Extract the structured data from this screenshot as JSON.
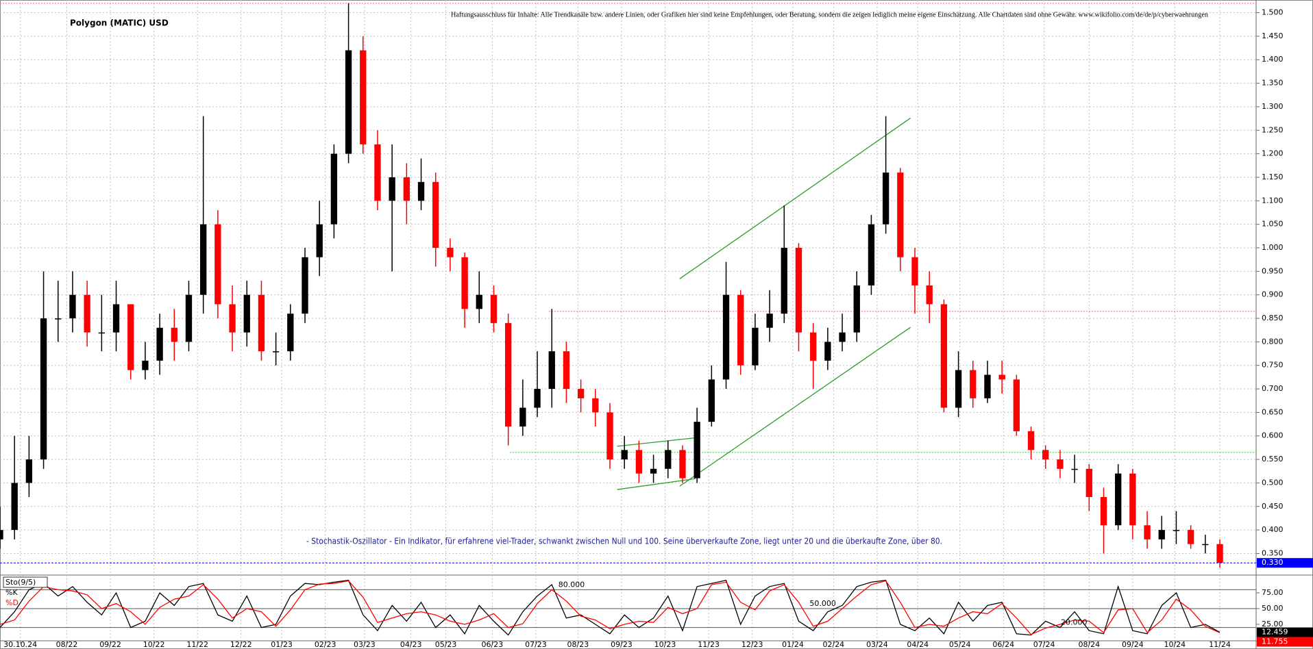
{
  "chart_data": {
    "type": "candlestick",
    "title": "Polygon (MATIC) USD",
    "disclaimer": "Haftungsausschluss für Inhalte: Alle Trendkanäle bzw. andere Linien, oder Grafiken hier sind keine Empfehlungen, oder Beratung, sondern die zeigen lediglich meine eigene Einschätzung. Alle Chartdaten sind ohne Gewähr. www.wikifolio.com/de/de/p/cyberwaehrungen",
    "annotation": "- Stochastik-Oszillator - Ein Indikator, für erfahrene viel-Trader, schwankt zwischen Null und 100. Seine überverkaufte Zone, liegt unter 20 und die überkaufte Zone, über 80.",
    "up_color": "#000000",
    "down_color": "#ff0000",
    "grid": true,
    "xlim": [
      0,
      86.5
    ],
    "xticks": [
      {
        "value": 1.4,
        "label": "30.10.24"
      },
      {
        "value": 4.6,
        "label": "08/22"
      },
      {
        "value": 7.6,
        "label": "09/22"
      },
      {
        "value": 10.6,
        "label": "10/22"
      },
      {
        "value": 13.6,
        "label": "11/22"
      },
      {
        "value": 16.6,
        "label": "12/22"
      },
      {
        "value": 19.4,
        "label": "01/23"
      },
      {
        "value": 22.4,
        "label": "02/23"
      },
      {
        "value": 25.1,
        "label": "03/23"
      },
      {
        "value": 28.3,
        "label": "04/23"
      },
      {
        "value": 30.7,
        "label": "05/23"
      },
      {
        "value": 33.9,
        "label": "06/23"
      },
      {
        "value": 36.9,
        "label": "07/23"
      },
      {
        "value": 39.8,
        "label": "08/23"
      },
      {
        "value": 42.8,
        "label": "09/23"
      },
      {
        "value": 45.8,
        "label": "10/23"
      },
      {
        "value": 48.8,
        "label": "11/23"
      },
      {
        "value": 51.8,
        "label": "12/23"
      },
      {
        "value": 54.6,
        "label": "01/24"
      },
      {
        "value": 57.4,
        "label": "02/24"
      },
      {
        "value": 60.4,
        "label": "03/24"
      },
      {
        "value": 63.2,
        "label": "04/24"
      },
      {
        "value": 66.1,
        "label": "05/24"
      },
      {
        "value": 69.1,
        "label": "06/24"
      },
      {
        "value": 71.9,
        "label": "07/24"
      },
      {
        "value": 75.0,
        "label": "08/24"
      },
      {
        "value": 78.0,
        "label": "09/24"
      },
      {
        "value": 80.9,
        "label": "10/24"
      },
      {
        "value": 84.0,
        "label": "11/24"
      }
    ],
    "ylim": [
      0.307,
      1.527
    ],
    "yticks": [
      {
        "value": 0.35,
        "label": "0.350"
      },
      {
        "value": 0.4,
        "label": "0.400"
      },
      {
        "value": 0.45,
        "label": "0.450"
      },
      {
        "value": 0.5,
        "label": "0.500"
      },
      {
        "value": 0.55,
        "label": "0.550"
      },
      {
        "value": 0.6,
        "label": "0.600"
      },
      {
        "value": 0.65,
        "label": "0.650"
      },
      {
        "value": 0.7,
        "label": "0.700"
      },
      {
        "value": 0.75,
        "label": "0.750"
      },
      {
        "value": 0.8,
        "label": "0.800"
      },
      {
        "value": 0.85,
        "label": "0.850"
      },
      {
        "value": 0.9,
        "label": "0.900"
      },
      {
        "value": 0.95,
        "label": "0.950"
      },
      {
        "value": 1.0,
        "label": "1.000"
      },
      {
        "value": 1.05,
        "label": "1.050"
      },
      {
        "value": 1.1,
        "label": "1.100"
      },
      {
        "value": 1.15,
        "label": "1.150"
      },
      {
        "value": 1.2,
        "label": "1.200"
      },
      {
        "value": 1.25,
        "label": "1.250"
      },
      {
        "value": 1.3,
        "label": "1.300"
      },
      {
        "value": 1.35,
        "label": "1.350"
      },
      {
        "value": 1.4,
        "label": "1.400"
      },
      {
        "value": 1.45,
        "label": "1.450"
      },
      {
        "value": 1.5,
        "label": "1.500"
      }
    ],
    "open": [
      0.38,
      0.4,
      0.5,
      0.55,
      0.85,
      0.85,
      0.9,
      0.82,
      0.82,
      0.88,
      0.74,
      0.76,
      0.83,
      0.8,
      0.9,
      1.05,
      0.88,
      0.82,
      0.9,
      0.78,
      0.78,
      0.86,
      0.98,
      1.05,
      1.2,
      1.42,
      1.22,
      1.1,
      1.15,
      1.1,
      1.14,
      1.0,
      0.98,
      0.87,
      0.9,
      0.84,
      0.62,
      0.66,
      0.7,
      0.78,
      0.7,
      0.68,
      0.65,
      0.55,
      0.57,
      0.52,
      0.53,
      0.57,
      0.51,
      0.63,
      0.72,
      0.9,
      0.75,
      0.83,
      0.86,
      1.0,
      0.82,
      0.76,
      0.8,
      0.82,
      0.92,
      1.05,
      1.16,
      0.98,
      0.92,
      0.88,
      0.66,
      0.74,
      0.68,
      0.73,
      0.72,
      0.61,
      0.57,
      0.55,
      0.53,
      0.53,
      0.47,
      0.41,
      0.52,
      0.41,
      0.38,
      0.4,
      0.4,
      0.37,
      0.37
    ],
    "high": [
      0.45,
      0.6,
      0.6,
      0.95,
      0.93,
      0.95,
      0.93,
      0.9,
      0.93,
      0.88,
      0.8,
      0.86,
      0.87,
      0.93,
      1.28,
      1.08,
      0.92,
      0.93,
      0.93,
      0.82,
      0.88,
      1.0,
      1.1,
      1.22,
      1.52,
      1.45,
      1.25,
      1.22,
      1.18,
      1.19,
      1.16,
      1.02,
      0.99,
      0.95,
      0.92,
      0.86,
      0.72,
      0.78,
      0.87,
      0.8,
      0.72,
      0.7,
      0.67,
      0.6,
      0.59,
      0.56,
      0.59,
      0.58,
      0.66,
      0.75,
      0.97,
      0.91,
      0.86,
      0.91,
      1.09,
      1.01,
      0.84,
      0.83,
      0.86,
      0.95,
      1.07,
      1.28,
      1.17,
      1.0,
      0.95,
      0.89,
      0.78,
      0.76,
      0.76,
      0.76,
      0.73,
      0.62,
      0.58,
      0.57,
      0.56,
      0.54,
      0.49,
      0.54,
      0.53,
      0.44,
      0.43,
      0.44,
      0.41,
      0.39,
      0.38
    ],
    "low": [
      0.36,
      0.38,
      0.47,
      0.53,
      0.8,
      0.82,
      0.79,
      0.78,
      0.78,
      0.72,
      0.72,
      0.73,
      0.76,
      0.78,
      0.86,
      0.85,
      0.78,
      0.79,
      0.76,
      0.75,
      0.76,
      0.84,
      0.94,
      1.02,
      1.18,
      1.2,
      1.08,
      0.95,
      1.05,
      1.08,
      0.96,
      0.95,
      0.83,
      0.84,
      0.82,
      0.58,
      0.6,
      0.64,
      0.66,
      0.67,
      0.65,
      0.62,
      0.53,
      0.53,
      0.5,
      0.5,
      0.51,
      0.5,
      0.5,
      0.62,
      0.7,
      0.73,
      0.74,
      0.8,
      0.84,
      0.78,
      0.7,
      0.74,
      0.78,
      0.8,
      0.9,
      1.03,
      0.95,
      0.86,
      0.84,
      0.65,
      0.64,
      0.66,
      0.67,
      0.69,
      0.6,
      0.55,
      0.53,
      0.51,
      0.5,
      0.44,
      0.35,
      0.4,
      0.38,
      0.36,
      0.36,
      0.37,
      0.36,
      0.35,
      0.32
    ],
    "close": [
      0.4,
      0.5,
      0.55,
      0.85,
      0.85,
      0.9,
      0.82,
      0.82,
      0.88,
      0.74,
      0.76,
      0.83,
      0.8,
      0.9,
      1.05,
      0.88,
      0.82,
      0.9,
      0.78,
      0.78,
      0.86,
      0.98,
      1.05,
      1.2,
      1.42,
      1.22,
      1.1,
      1.15,
      1.1,
      1.14,
      1.0,
      0.98,
      0.87,
      0.9,
      0.84,
      0.62,
      0.66,
      0.7,
      0.78,
      0.7,
      0.68,
      0.65,
      0.55,
      0.57,
      0.52,
      0.53,
      0.57,
      0.51,
      0.63,
      0.72,
      0.9,
      0.75,
      0.83,
      0.86,
      1.0,
      0.82,
      0.76,
      0.8,
      0.82,
      0.92,
      1.05,
      1.16,
      0.98,
      0.92,
      0.88,
      0.66,
      0.74,
      0.68,
      0.73,
      0.72,
      0.61,
      0.57,
      0.55,
      0.53,
      0.53,
      0.47,
      0.41,
      0.52,
      0.41,
      0.38,
      0.4,
      0.4,
      0.37,
      0.37,
      0.33
    ],
    "price_marker": {
      "value": 0.33,
      "label": "0.330",
      "color": "#0000ff"
    },
    "hlines": [
      {
        "value": 0.565,
        "x0": 35.1,
        "color": "#33cc33"
      },
      {
        "value": 0.865,
        "x0": 37.8,
        "color": "#ff6666"
      },
      {
        "value": 1.52,
        "x0": 0,
        "color": "#ff6666"
      }
    ],
    "trendline_color": "#2a9d2a",
    "trendlines": [
      {
        "x": [
          46.8,
          62.7
        ],
        "y": [
          0.934,
          1.276
        ]
      },
      {
        "x": [
          46.8,
          62.7
        ],
        "y": [
          0.493,
          0.831
        ]
      },
      {
        "x": [
          42.5,
          47.9
        ],
        "y": [
          0.486,
          0.509
        ]
      },
      {
        "x": [
          42.5,
          47.9
        ],
        "y": [
          0.578,
          0.596
        ]
      }
    ],
    "stochastic": {
      "name": "Sto(9/5)",
      "ylim": [
        0,
        100
      ],
      "yticks": [
        {
          "value": 25,
          "label": "25.00"
        },
        {
          "value": 50,
          "label": "50.00"
        },
        {
          "value": 75,
          "label": "75.00"
        }
      ],
      "levels": [
        {
          "value": 80,
          "label": "80.000"
        },
        {
          "value": 50,
          "label": "50.000"
        },
        {
          "value": 20,
          "label": "20.000"
        }
      ],
      "series": [
        {
          "name": "%K",
          "color": "#000000",
          "last_label": "12.459",
          "values": [
            20,
            45,
            80,
            90,
            70,
            85,
            60,
            40,
            75,
            20,
            30,
            75,
            55,
            85,
            90,
            40,
            30,
            70,
            20,
            25,
            70,
            90,
            88,
            92,
            95,
            40,
            15,
            55,
            30,
            60,
            20,
            40,
            10,
            55,
            30,
            8,
            45,
            70,
            88,
            35,
            40,
            25,
            10,
            40,
            20,
            35,
            70,
            15,
            85,
            90,
            95,
            25,
            70,
            85,
            90,
            30,
            15,
            45,
            55,
            85,
            92,
            95,
            25,
            15,
            35,
            10,
            60,
            30,
            55,
            60,
            10,
            8,
            30,
            20,
            45,
            15,
            10,
            85,
            15,
            10,
            55,
            75,
            20,
            25,
            12.459
          ]
        },
        {
          "name": "%D",
          "color": "#ff0000",
          "last_label": "11.755",
          "values": [
            25,
            32,
            62,
            85,
            80,
            78,
            72,
            50,
            58,
            45,
            25,
            52,
            65,
            70,
            88,
            65,
            35,
            50,
            45,
            22,
            48,
            80,
            89,
            90,
            94,
            68,
            28,
            35,
            42,
            45,
            40,
            30,
            25,
            32,
            42,
            20,
            26,
            58,
            80,
            62,
            38,
            32,
            18,
            25,
            30,
            28,
            52,
            42,
            50,
            88,
            92,
            60,
            48,
            78,
            88,
            60,
            22,
            30,
            50,
            70,
            88,
            94,
            60,
            20,
            25,
            22,
            35,
            45,
            42,
            58,
            35,
            9,
            19,
            25,
            32,
            30,
            12,
            48,
            50,
            12,
            32,
            65,
            48,
            22,
            11.755
          ]
        }
      ]
    }
  }
}
